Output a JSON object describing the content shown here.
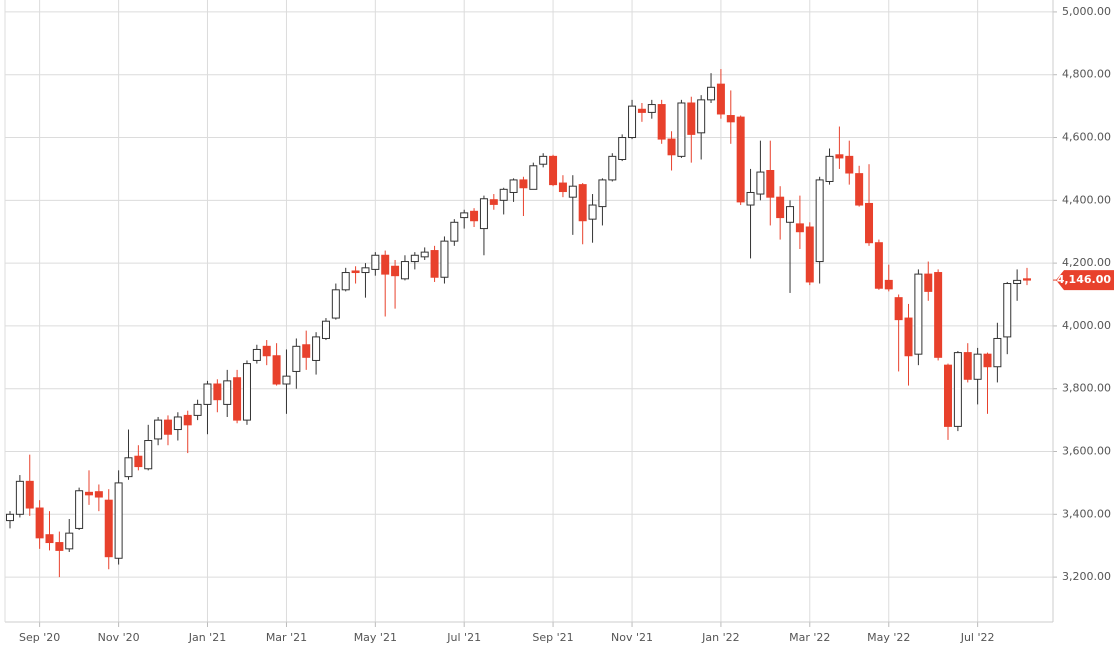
{
  "chart_data": {
    "type": "candlestick",
    "categories": [
      null,
      null,
      null,
      "Sep '20",
      null,
      null,
      null,
      null,
      null,
      null,
      null,
      "Nov '20",
      null,
      null,
      null,
      null,
      null,
      null,
      null,
      null,
      "Jan '21",
      null,
      null,
      null,
      null,
      null,
      null,
      null,
      "Mar '21",
      null,
      null,
      null,
      null,
      null,
      null,
      null,
      null,
      "May '21",
      null,
      null,
      null,
      null,
      null,
      null,
      null,
      null,
      "Jul '21",
      null,
      null,
      null,
      null,
      null,
      null,
      null,
      null,
      "Sep '21",
      null,
      null,
      null,
      null,
      null,
      null,
      null,
      "Nov '21",
      null,
      null,
      null,
      null,
      null,
      null,
      null,
      null,
      "Jan '22",
      null,
      null,
      null,
      null,
      null,
      null,
      null,
      null,
      "Mar '22",
      null,
      null,
      null,
      null,
      null,
      null,
      null,
      "May '22",
      null,
      null,
      null,
      null,
      null,
      null,
      null,
      null,
      "Jul '22",
      null,
      null,
      null,
      null,
      null
    ],
    "open": [
      3380,
      3400,
      3505,
      3420,
      3335,
      3310,
      3290,
      3355,
      3470,
      3472,
      3445,
      3260,
      3520,
      3585,
      3545,
      3640,
      3700,
      3670,
      3715,
      3715,
      3750,
      3815,
      3750,
      3835,
      3700,
      3890,
      3935,
      3905,
      3815,
      3855,
      3940,
      3890,
      3960,
      4025,
      4115,
      4175,
      4170,
      4180,
      4225,
      4190,
      4150,
      4205,
      4220,
      4240,
      4155,
      4270,
      4345,
      4365,
      4310,
      4402,
      4400,
      4425,
      4465,
      4435,
      4515,
      4540,
      4455,
      4410,
      4450,
      4340,
      4380,
      4465,
      4530,
      4600,
      4690,
      4680,
      4705,
      4595,
      4540,
      4710,
      4615,
      4720,
      4770,
      4670,
      4665,
      4385,
      4420,
      4495,
      4410,
      4330,
      4325,
      4315,
      4205,
      4460,
      4545,
      4540,
      4485,
      4390,
      4265,
      4145,
      4090,
      4025,
      3910,
      4165,
      4170,
      3875,
      3680,
      3915,
      3830,
      3910,
      3870,
      3965,
      4135,
      4150
    ],
    "high": [
      3410,
      3525,
      3590,
      3445,
      3410,
      3345,
      3385,
      3485,
      3540,
      3495,
      3480,
      3540,
      3670,
      3620,
      3685,
      3710,
      3715,
      3725,
      3730,
      3765,
      3825,
      3830,
      3860,
      3860,
      3890,
      3940,
      3955,
      3945,
      3925,
      3960,
      3985,
      3980,
      4025,
      4135,
      4185,
      4190,
      4200,
      4235,
      4240,
      4210,
      4225,
      4235,
      4250,
      4255,
      4285,
      4340,
      4370,
      4375,
      4415,
      4420,
      4440,
      4470,
      4475,
      4520,
      4550,
      4545,
      4480,
      4480,
      4455,
      4420,
      4470,
      4550,
      4610,
      4720,
      4710,
      4720,
      4720,
      4620,
      4720,
      4730,
      4735,
      4805,
      4818,
      4750,
      4670,
      4500,
      4590,
      4590,
      4445,
      4400,
      4415,
      4330,
      4475,
      4565,
      4635,
      4590,
      4510,
      4515,
      4275,
      4195,
      4100,
      4070,
      4180,
      4205,
      4180,
      3880,
      3920,
      3945,
      3930,
      3915,
      4010,
      4140,
      4180,
      4185
    ],
    "low": [
      3355,
      3390,
      3395,
      3290,
      3285,
      3200,
      3280,
      3350,
      3430,
      3410,
      3225,
      3240,
      3510,
      3540,
      3540,
      3620,
      3620,
      3635,
      3595,
      3700,
      3655,
      3725,
      3710,
      3690,
      3685,
      3880,
      3875,
      3810,
      3720,
      3800,
      3860,
      3845,
      3955,
      4020,
      4110,
      4135,
      4090,
      4160,
      4030,
      4055,
      4145,
      4180,
      4210,
      4140,
      4135,
      4255,
      4310,
      4315,
      4225,
      4370,
      4355,
      4395,
      4350,
      4435,
      4505,
      4445,
      4410,
      4290,
      4260,
      4265,
      4320,
      4460,
      4525,
      4595,
      4650,
      4660,
      4580,
      4495,
      4535,
      4520,
      4530,
      4710,
      4660,
      4580,
      4385,
      4215,
      4400,
      4320,
      4275,
      4105,
      4245,
      4130,
      4135,
      4450,
      4500,
      4450,
      4380,
      4255,
      4115,
      4110,
      3855,
      3810,
      3875,
      4080,
      3890,
      3637,
      3665,
      3820,
      3750,
      3720,
      3820,
      3910,
      4080,
      4130
    ],
    "close": [
      3400,
      3505,
      3420,
      3325,
      3310,
      3285,
      3340,
      3475,
      3462,
      3455,
      3265,
      3500,
      3580,
      3552,
      3635,
      3700,
      3655,
      3710,
      3685,
      3750,
      3815,
      3765,
      3825,
      3700,
      3880,
      3925,
      3905,
      3815,
      3840,
      3935,
      3900,
      3965,
      4015,
      4115,
      4170,
      4170,
      4185,
      4225,
      4165,
      4160,
      4205,
      4225,
      4235,
      4155,
      4270,
      4330,
      4360,
      4335,
      4405,
      4387,
      4435,
      4465,
      4440,
      4510,
      4540,
      4450,
      4428,
      4445,
      4335,
      4385,
      4465,
      4540,
      4600,
      4700,
      4680,
      4705,
      4595,
      4545,
      4710,
      4610,
      4720,
      4760,
      4675,
      4650,
      4395,
      4425,
      4490,
      4410,
      4345,
      4380,
      4300,
      4140,
      4465,
      4540,
      4535,
      4487,
      4385,
      4265,
      4120,
      4118,
      4020,
      3905,
      4165,
      4110,
      3900,
      3680,
      3915,
      3830,
      3910,
      3870,
      3960,
      4135,
      4145,
      4146
    ],
    "up_color": "#ffffff",
    "down_color": "#e8412c",
    "ylim": [
      3057,
      5038
    ],
    "yticks": [
      {
        "value": 3200,
        "label": "3,200.00"
      },
      {
        "value": 3400,
        "label": "3,400.00"
      },
      {
        "value": 3600,
        "label": "3,600.00"
      },
      {
        "value": 3800,
        "label": "3,800.00"
      },
      {
        "value": 4000,
        "label": "4,000.00"
      },
      {
        "value": 4200,
        "label": "4,200.00"
      },
      {
        "value": 4400,
        "label": "4,400.00"
      },
      {
        "value": 4600,
        "label": "4,600.00"
      },
      {
        "value": 4800,
        "label": "4,800.00"
      },
      {
        "value": 5000,
        "label": "5,000.00"
      }
    ],
    "last_price": {
      "value": 4146,
      "label": "4,146.00"
    },
    "grid": true
  }
}
